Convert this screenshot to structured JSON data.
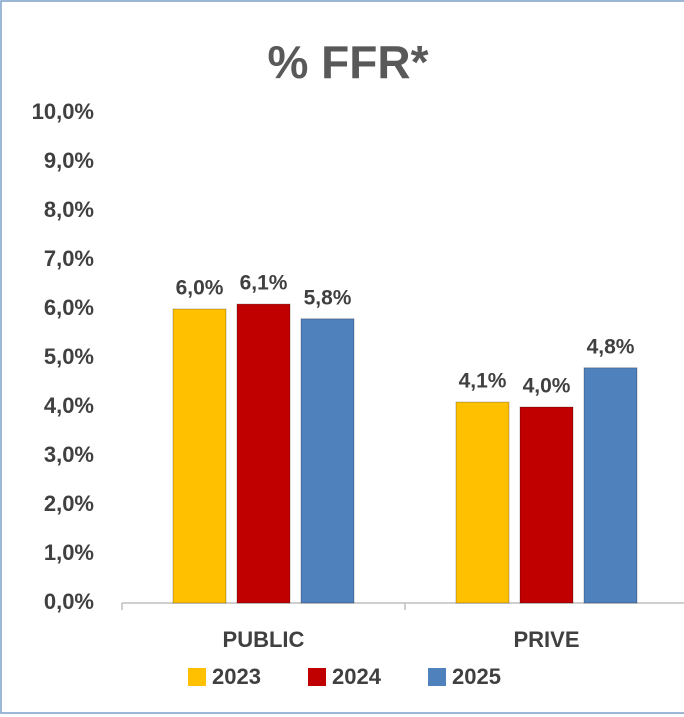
{
  "chart_data": {
    "type": "bar",
    "title": "% FFR*",
    "categories": [
      "PUBLIC",
      "PRIVE"
    ],
    "series": [
      {
        "name": "2023",
        "color": "#ffc000",
        "values": [
          6.0,
          4.1
        ],
        "value_labels": [
          "6,0%",
          "4,1%"
        ]
      },
      {
        "name": "2024",
        "color": "#c00000",
        "values": [
          6.1,
          4.0
        ],
        "value_labels": [
          "6,1%",
          "4,0%"
        ]
      },
      {
        "name": "2025",
        "color": "#4f81bd",
        "values": [
          5.8,
          4.8
        ],
        "value_labels": [
          "5,8%",
          "4,8%"
        ]
      }
    ],
    "ylim": [
      0,
      10
    ],
    "yticks": [
      {
        "value": 0,
        "label": "0,0%"
      },
      {
        "value": 1,
        "label": "1,0%"
      },
      {
        "value": 2,
        "label": "2,0%"
      },
      {
        "value": 3,
        "label": "3,0%"
      },
      {
        "value": 4,
        "label": "4,0%"
      },
      {
        "value": 5,
        "label": "5,0%"
      },
      {
        "value": 6,
        "label": "6,0%"
      },
      {
        "value": 7,
        "label": "7,0%"
      },
      {
        "value": 8,
        "label": "8,0%"
      },
      {
        "value": 9,
        "label": "9,0%"
      },
      {
        "value": 10,
        "label": "10,0%"
      }
    ],
    "legend": "bottom"
  }
}
